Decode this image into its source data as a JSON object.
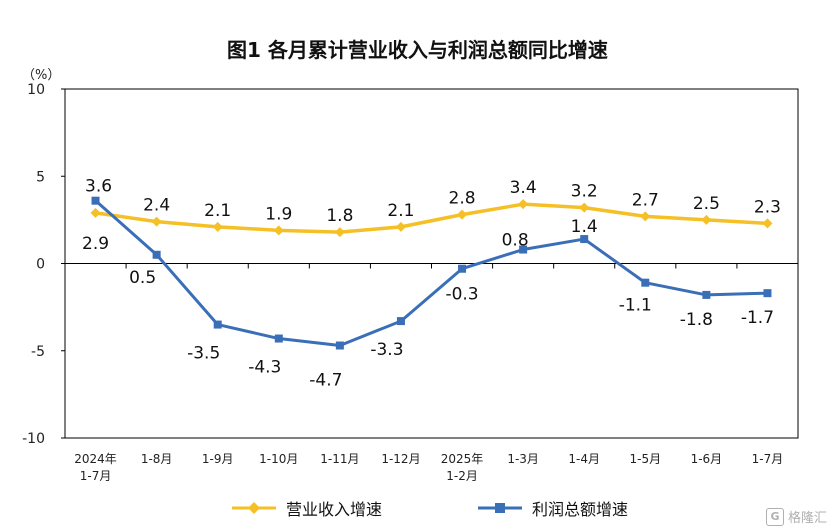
{
  "chart_data": {
    "type": "line",
    "title": "图1  各月累计营业收入与利润总额同比增速",
    "ylabel": "（%）",
    "ylim": [
      -10,
      10
    ],
    "yticks": [
      "10",
      "5",
      "0",
      "-5",
      "-10"
    ],
    "categories": [
      [
        "2024年",
        "1-7月"
      ],
      [
        "1-8月"
      ],
      [
        "1-9月"
      ],
      [
        "1-10月"
      ],
      [
        "1-11月"
      ],
      [
        "1-12月"
      ],
      [
        "2025年",
        "1-2月"
      ],
      [
        "1-3月"
      ],
      [
        "1-4月"
      ],
      [
        "1-5月"
      ],
      [
        "1-6月"
      ],
      [
        "1-7月"
      ]
    ],
    "series": [
      {
        "name": "营业收入增速",
        "color": "#F5C025",
        "marker": "diamond",
        "values": [
          2.9,
          2.4,
          2.1,
          1.9,
          1.8,
          2.1,
          2.8,
          3.4,
          3.2,
          2.7,
          2.5,
          2.3
        ],
        "labels": [
          "2.9",
          "2.4",
          "2.1",
          "1.9",
          "1.8",
          "2.1",
          "2.8",
          "3.4",
          "3.2",
          "2.7",
          "2.5",
          "2.3"
        ]
      },
      {
        "name": "利润总额增速",
        "color": "#3A6FB8",
        "marker": "square",
        "values": [
          3.6,
          0.5,
          -3.5,
          -4.3,
          -4.7,
          -3.3,
          -0.3,
          0.8,
          1.4,
          -1.1,
          -1.8,
          -1.7
        ],
        "labels": [
          "3.6",
          "0.5",
          "-3.5",
          "-4.3",
          "-4.7",
          "-3.3",
          "-0.3",
          "0.8",
          "1.4",
          "-1.1",
          "-1.8",
          "-1.7"
        ]
      }
    ],
    "legend_position": "bottom",
    "grid": false
  },
  "watermark": {
    "logo_text": "G",
    "text": "格隆汇"
  }
}
